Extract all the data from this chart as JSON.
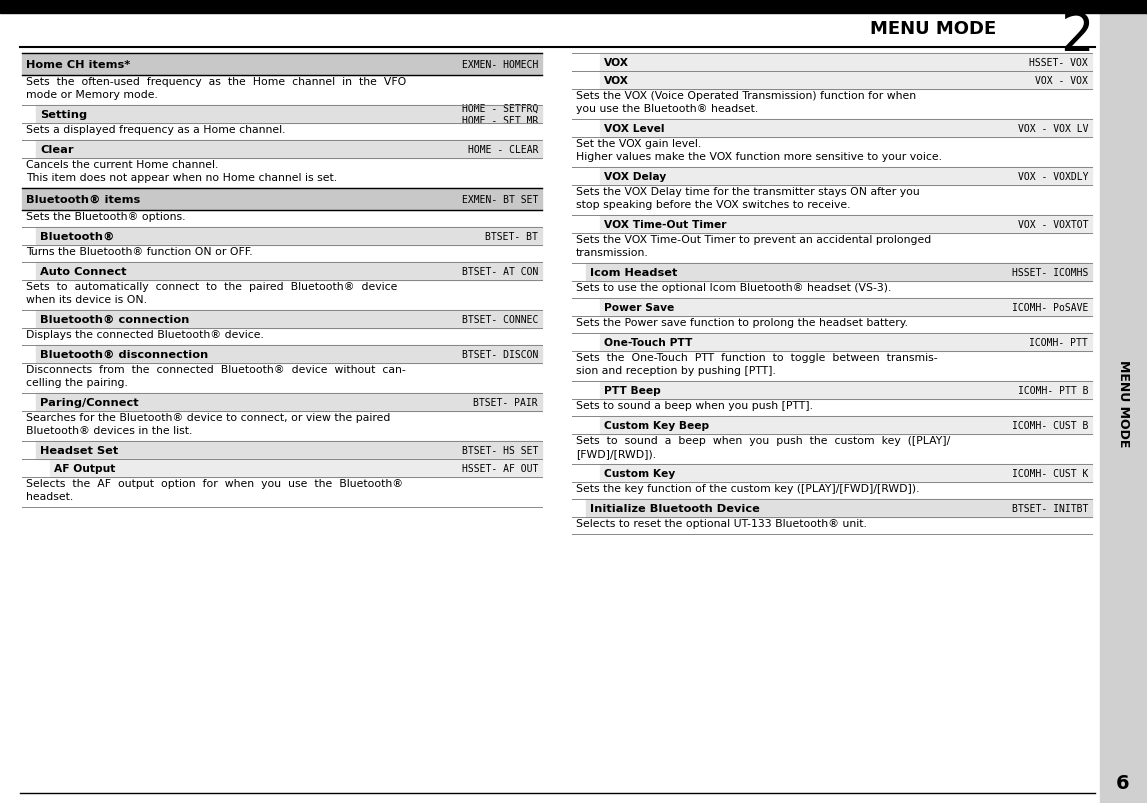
{
  "title": "MENU MODE",
  "page_num": "2",
  "chapter_num": "6",
  "bg_color": "#ffffff",
  "header_bar_color": "#000000",
  "section_bg_color": "#e0e0e0",
  "sub_section_bg_color": "#f0f0f0",
  "left_column": [
    {
      "type": "section_header",
      "label": "Home CH items*",
      "code": "EXMEN- HOMECH",
      "bg": "#d0d0d0"
    },
    {
      "type": "body",
      "text": "Sets  the  often-used  frequency  as  the  Home  channel  in  the  VFO\nmode or Memory mode."
    },
    {
      "type": "sub_item",
      "label": "Setting",
      "code": "HOME - SETFRQ\nHOME - SET MR",
      "bg": "#e8e8e8"
    },
    {
      "type": "body",
      "text": "Sets a displayed frequency as a Home channel."
    },
    {
      "type": "sub_item",
      "label": "Clear",
      "code": "HOME - CLEAR",
      "bg": "#e8e8e8"
    },
    {
      "type": "body",
      "text": "Cancels the current Home channel.\nThis item does not appear when no Home channel is set."
    },
    {
      "type": "section_header",
      "label": "Bluetooth® items",
      "code": "EXMEN- BT SET",
      "bg": "#d0d0d0"
    },
    {
      "type": "body",
      "text": "Sets the Bluetooth® options."
    },
    {
      "type": "sub_item",
      "label": "Bluetooth®",
      "code": "BTSET- BT",
      "bg": "#e8e8e8"
    },
    {
      "type": "body",
      "text": "Turns the Bluetooth® function ON or OFF."
    },
    {
      "type": "sub_item",
      "label": "Auto Connect",
      "code": "BTSET- AT CON",
      "bg": "#e8e8e8"
    },
    {
      "type": "body",
      "text": "Sets  to  automatically  connect  to  the  paired  Bluetooth®  device\nwhen its device is ON."
    },
    {
      "type": "sub_item",
      "label": "Bluetooth® connection",
      "code": "BTSET- CONNEC",
      "bg": "#e8e8e8"
    },
    {
      "type": "body",
      "text": "Displays the connected Bluetooth® device."
    },
    {
      "type": "sub_item",
      "label": "Bluetooth® disconnection",
      "code": "BTSET- DISCON",
      "bg": "#e8e8e8"
    },
    {
      "type": "body",
      "text": "Disconnects  from  the  connected  Bluetooth®  device  without  can-\ncelling the pairing."
    },
    {
      "type": "sub_item",
      "label": "Paring/Connect",
      "code": "BTSET- PAIR",
      "bg": "#e8e8e8"
    },
    {
      "type": "body",
      "text": "Searches for the Bluetooth® device to connect, or view the paired\nBluetooth® devices in the list."
    },
    {
      "type": "sub_item",
      "label": "Headset Set",
      "code": "BTSET- HS SET",
      "bg": "#e8e8e8"
    },
    {
      "type": "sub_sub_item",
      "label": "AF Output",
      "code": "HSSET- AF OUT",
      "bg": "#f0f0f0"
    },
    {
      "type": "body",
      "text": "Selects  the  AF  output  option  for  when  you  use  the  Bluetooth®\nheadset."
    }
  ],
  "right_column": [
    {
      "type": "sub_sub_item",
      "label": "VOX",
      "code": "HSSET- VOX",
      "bg": "#d8d8d8"
    },
    {
      "type": "sub_sub_item",
      "label": "VOX",
      "code": "VOX - VOX",
      "bg": "#f0f0f0"
    },
    {
      "type": "body",
      "text": "Sets the VOX (Voice Operated Transmission) function for when\nyou use the Bluetooth® headset."
    },
    {
      "type": "sub_sub_item",
      "label": "VOX Level",
      "code": "VOX - VOX LV",
      "bg": "#f0f0f0"
    },
    {
      "type": "body",
      "text": "Set the VOX gain level.\nHigher values make the VOX function more sensitive to your voice."
    },
    {
      "type": "sub_sub_item",
      "label": "VOX Delay",
      "code": "VOX - VOXDLY",
      "bg": "#f0f0f0"
    },
    {
      "type": "body",
      "text": "Sets the VOX Delay time for the transmitter stays ON after you\nstop speaking before the VOX switches to receive."
    },
    {
      "type": "sub_sub_item",
      "label": "VOX Time-Out Timer",
      "code": "VOX - VOXTOT",
      "bg": "#f0f0f0"
    },
    {
      "type": "body",
      "text": "Sets the VOX Time-Out Timer to prevent an accidental prolonged\ntransmission."
    },
    {
      "type": "sub_item",
      "label": "Icom Headset",
      "code": "HSSET- ICOMHS",
      "bg": "#e8e8e8"
    },
    {
      "type": "body",
      "text": "Sets to use the optional Icom Bluetooth® headset (VS-3)."
    },
    {
      "type": "sub_sub_item",
      "label": "Power Save",
      "code": "ICOMH- PoSAVE",
      "bg": "#f0f0f0"
    },
    {
      "type": "body",
      "text": "Sets the Power save function to prolong the headset battery."
    },
    {
      "type": "sub_sub_item",
      "label": "One-Touch PTT",
      "code": "ICOMH- PTT",
      "bg": "#f0f0f0"
    },
    {
      "type": "body",
      "text": "Sets  the  One-Touch  PTT  function  to  toggle  between  transmis-\nsion and reception by pushing [PTT]."
    },
    {
      "type": "sub_sub_item",
      "label": "PTT Beep",
      "code": "ICOMH- PTT B",
      "bg": "#f0f0f0"
    },
    {
      "type": "body",
      "text": "Sets to sound a beep when you push [PTT]."
    },
    {
      "type": "sub_sub_item",
      "label": "Custom Key Beep",
      "code": "ICOMH- CUST B",
      "bg": "#f0f0f0"
    },
    {
      "type": "body",
      "text": "Sets  to  sound  a  beep  when  you  push  the  custom  key  ([PLAY]/\n[FWD]/[RWD])."
    },
    {
      "type": "sub_sub_item",
      "label": "Custom Key",
      "code": "ICOMH- CUST K",
      "bg": "#f0f0f0"
    },
    {
      "type": "body",
      "text": "Sets the key function of the custom key ([PLAY]/[FWD]/[RWD])."
    },
    {
      "type": "sub_item",
      "label": "Initialize Bluetooth Device",
      "code": "BTSET- INITBT",
      "bg": "#e8e8e8"
    },
    {
      "type": "body",
      "text": "Selects to reset the optional UT-133 Bluetooth® unit."
    }
  ]
}
